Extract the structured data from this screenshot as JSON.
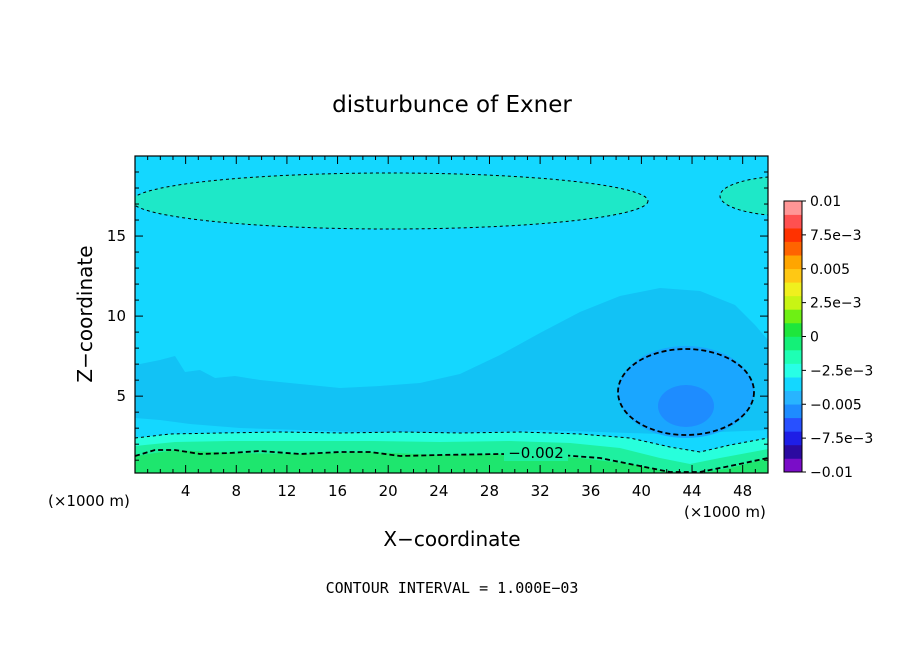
{
  "chart_data": {
    "type": "heatmap",
    "title": "disturbunce of Exner",
    "xlabel": "X−coordinate",
    "ylabel": "Z−coordinate",
    "x_unit_left": "(×1000 m)",
    "x_unit_right": "(×1000 m)",
    "xlim": [
      0,
      50
    ],
    "ylim": [
      0.2,
      20
    ],
    "x_ticks": [
      "4",
      "8",
      "12",
      "16",
      "20",
      "24",
      "28",
      "32",
      "36",
      "40",
      "44",
      "48"
    ],
    "y_ticks": [
      "5",
      "10",
      "15"
    ],
    "footer": "CONTOUR INTERVAL = 1.000E−03",
    "contour_label": "−0.002",
    "colorbar": {
      "levels": [
        -0.01,
        -0.009,
        -0.008,
        -0.007,
        -0.006,
        -0.005,
        -0.004,
        -0.003,
        -0.002,
        -0.001,
        0,
        0.001,
        0.002,
        0.003,
        0.004,
        0.005,
        0.006,
        0.007,
        0.008,
        0.009,
        0.01
      ],
      "colors": [
        "#7a0dc8",
        "#2b0aa0",
        "#1e1ee6",
        "#2850ff",
        "#1e8cff",
        "#28b4ff",
        "#14d7ff",
        "#28ffe6",
        "#1effb4",
        "#14f078",
        "#1ee63c",
        "#6ef014",
        "#c8f514",
        "#f0f01e",
        "#ffc814",
        "#ffa500",
        "#ff6400",
        "#ff3200",
        "#ff5050",
        "#ff9696"
      ],
      "tick_labels": [
        "0.01",
        "7.5e−3",
        "0.005",
        "2.5e−3",
        "0",
        "−2.5e−3",
        "−0.005",
        "−7.5e−3",
        "−0.01"
      ]
    },
    "field_description_levels": {
      "background": -0.002,
      "upper_band": -0.001,
      "mid_band": -0.003,
      "core_low": -0.004,
      "core_min": -0.005,
      "surface_layer": -0.001,
      "bottom": 0
    }
  }
}
